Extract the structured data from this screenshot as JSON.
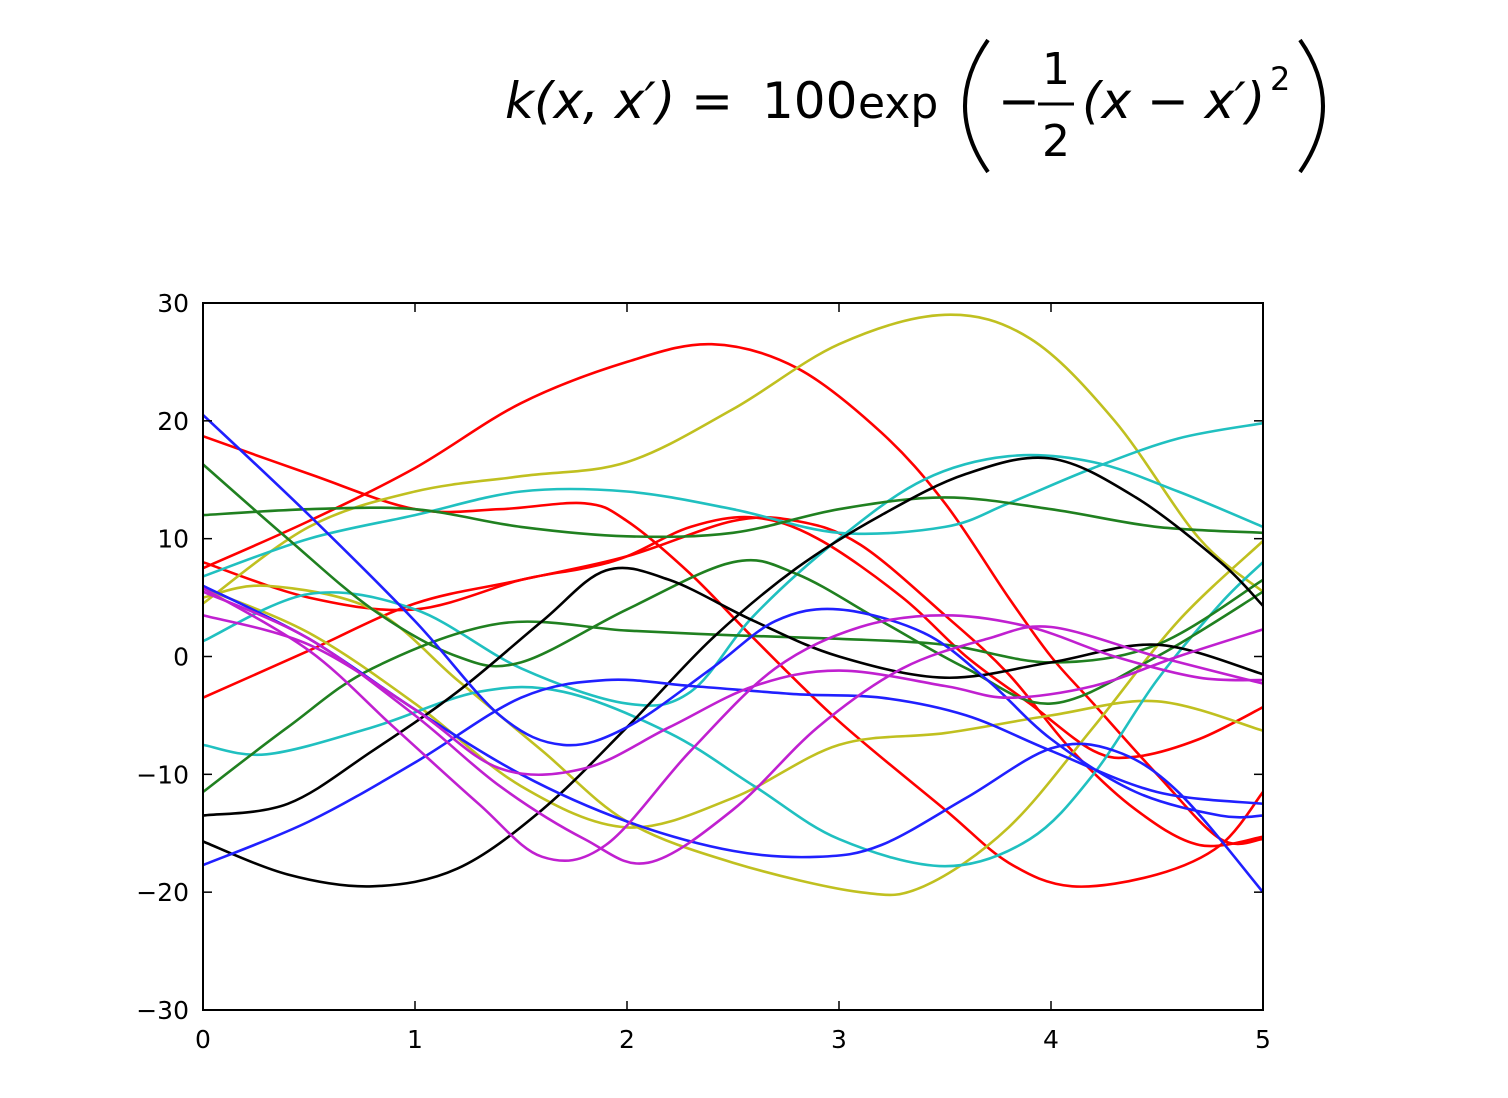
{
  "formula": {
    "lhs": "k(x, x′) =",
    "coefficient": "100",
    "coefficient_color": "#ff0000",
    "func": "exp",
    "minus": "−",
    "frac_num": "1",
    "frac_den": "2",
    "inner": "(x − x′)",
    "power": "2"
  },
  "chart_data": {
    "type": "line",
    "title": "",
    "xlabel": "",
    "ylabel": "",
    "xlim": [
      0,
      5
    ],
    "ylim": [
      -30,
      30
    ],
    "xticks": [
      0,
      1,
      2,
      3,
      4,
      5
    ],
    "yticks": [
      -30,
      -20,
      -10,
      0,
      10,
      20,
      30
    ],
    "xtick_labels": [
      "0",
      "1",
      "2",
      "3",
      "4",
      "5"
    ],
    "ytick_labels": [
      "−30",
      "−20",
      "−10",
      "0",
      "10",
      "20",
      "30"
    ],
    "grid": false,
    "legend": "none",
    "series": [
      {
        "color": "#ff0000",
        "points": [
          [
            0,
            7.5
          ],
          [
            0.5,
            11.5
          ],
          [
            1,
            16
          ],
          [
            1.5,
            21.5
          ],
          [
            2,
            25
          ],
          [
            2.4,
            26.5
          ],
          [
            2.8,
            24.5
          ],
          [
            3.2,
            19
          ],
          [
            3.5,
            13
          ],
          [
            3.8,
            5
          ],
          [
            4,
            0
          ],
          [
            4.2,
            -4
          ],
          [
            4.5,
            -10
          ],
          [
            4.8,
            -15.5
          ],
          [
            5,
            -15.5
          ]
        ]
      },
      {
        "color": "#ff0000",
        "points": [
          [
            0,
            18.7
          ],
          [
            0.5,
            15.5
          ],
          [
            1,
            12.5
          ],
          [
            1.4,
            12.5
          ],
          [
            1.8,
            13
          ],
          [
            2,
            11.5
          ],
          [
            2.3,
            7
          ],
          [
            2.6,
            1.5
          ],
          [
            3,
            -5.5
          ],
          [
            3.5,
            -13
          ],
          [
            3.8,
            -17.5
          ],
          [
            4.1,
            -19.5
          ],
          [
            4.5,
            -18.5
          ],
          [
            4.8,
            -16
          ],
          [
            5,
            -11.5
          ]
        ]
      },
      {
        "color": "#ff0000",
        "points": [
          [
            0,
            8
          ],
          [
            0.5,
            5
          ],
          [
            1,
            4
          ],
          [
            1.5,
            6.5
          ],
          [
            1.8,
            7.5
          ],
          [
            2,
            8.5
          ],
          [
            2.3,
            11
          ],
          [
            2.6,
            11.8
          ],
          [
            2.9,
            10
          ],
          [
            3.3,
            5
          ],
          [
            3.6,
            0
          ],
          [
            3.9,
            -4
          ],
          [
            4.2,
            -8
          ],
          [
            4.4,
            -8.5
          ],
          [
            4.7,
            -7
          ],
          [
            5,
            -4.3
          ]
        ]
      },
      {
        "color": "#ff0000",
        "points": [
          [
            0,
            -3.5
          ],
          [
            0.5,
            0.5
          ],
          [
            1,
            4.5
          ],
          [
            1.5,
            6.5
          ],
          [
            2,
            8.5
          ],
          [
            2.5,
            11.5
          ],
          [
            2.8,
            11.5
          ],
          [
            3.1,
            9.5
          ],
          [
            3.5,
            3.5
          ],
          [
            3.8,
            -1.5
          ],
          [
            4.1,
            -8
          ],
          [
            4.4,
            -13
          ],
          [
            4.7,
            -16
          ],
          [
            5,
            -15.3
          ]
        ]
      },
      {
        "color": "#c0c020",
        "points": [
          [
            0,
            4.5
          ],
          [
            0.5,
            11
          ],
          [
            1,
            14
          ],
          [
            1.5,
            15.3
          ],
          [
            2,
            16.5
          ],
          [
            2.5,
            21
          ],
          [
            3,
            26.5
          ],
          [
            3.5,
            29
          ],
          [
            3.9,
            27
          ],
          [
            4.3,
            20
          ],
          [
            4.7,
            10
          ],
          [
            5,
            5.5
          ]
        ]
      },
      {
        "color": "#c0c020",
        "points": [
          [
            0,
            5.8
          ],
          [
            0.5,
            2
          ],
          [
            1,
            -4
          ],
          [
            1.5,
            -11
          ],
          [
            2,
            -14.5
          ],
          [
            2.5,
            -12
          ],
          [
            3,
            -7.5
          ],
          [
            3.5,
            -6.5
          ],
          [
            4,
            -5
          ],
          [
            4.5,
            -3.8
          ],
          [
            5,
            -6.3
          ]
        ]
      },
      {
        "color": "#c0c020",
        "points": [
          [
            0,
            5
          ],
          [
            0.3,
            6
          ],
          [
            0.8,
            4
          ],
          [
            1.2,
            -2
          ],
          [
            1.6,
            -8
          ],
          [
            2,
            -14
          ],
          [
            2.5,
            -17.5
          ],
          [
            3.1,
            -20
          ],
          [
            3.4,
            -19.5
          ],
          [
            3.8,
            -14.5
          ],
          [
            4.2,
            -6
          ],
          [
            4.6,
            3
          ],
          [
            5,
            9.8
          ]
        ]
      },
      {
        "color": "#20c0c0",
        "points": [
          [
            0,
            6.8
          ],
          [
            0.5,
            10
          ],
          [
            1,
            12
          ],
          [
            1.5,
            14
          ],
          [
            2,
            14
          ],
          [
            2.5,
            12.5
          ],
          [
            3,
            10.5
          ],
          [
            3.5,
            11
          ],
          [
            3.8,
            13
          ],
          [
            4.2,
            16
          ],
          [
            4.6,
            18.5
          ],
          [
            5,
            19.8
          ]
        ]
      },
      {
        "color": "#20c0c0",
        "points": [
          [
            0,
            1.3
          ],
          [
            0.5,
            5.3
          ],
          [
            1,
            4
          ],
          [
            1.5,
            -1
          ],
          [
            2,
            -4
          ],
          [
            2.3,
            -3
          ],
          [
            2.6,
            3.5
          ],
          [
            3,
            10
          ],
          [
            3.4,
            15
          ],
          [
            3.8,
            17
          ],
          [
            4.2,
            16.5
          ],
          [
            4.6,
            14
          ],
          [
            5,
            11
          ]
        ]
      },
      {
        "color": "#20c0c0",
        "points": [
          [
            0,
            -7.5
          ],
          [
            0.3,
            -8.3
          ],
          [
            0.8,
            -6
          ],
          [
            1.3,
            -3
          ],
          [
            1.7,
            -3
          ],
          [
            2.2,
            -6.5
          ],
          [
            2.6,
            -11
          ],
          [
            3,
            -15.5
          ],
          [
            3.5,
            -17.8
          ],
          [
            3.9,
            -15.5
          ],
          [
            4.2,
            -10
          ],
          [
            4.5,
            -2
          ],
          [
            4.8,
            4.5
          ],
          [
            5,
            8
          ]
        ]
      },
      {
        "color": "#208020",
        "points": [
          [
            0,
            12
          ],
          [
            0.5,
            12.5
          ],
          [
            1,
            12.5
          ],
          [
            1.5,
            11
          ],
          [
            2,
            10.2
          ],
          [
            2.5,
            10.5
          ],
          [
            3,
            12.5
          ],
          [
            3.5,
            13.5
          ],
          [
            4,
            12.5
          ],
          [
            4.5,
            11
          ],
          [
            5,
            10.5
          ]
        ]
      },
      {
        "color": "#208020",
        "points": [
          [
            0,
            16.3
          ],
          [
            0.4,
            10
          ],
          [
            0.8,
            4
          ],
          [
            1.2,
            0
          ],
          [
            1.5,
            -0.5
          ],
          [
            2,
            4
          ],
          [
            2.5,
            8
          ],
          [
            2.8,
            7
          ],
          [
            3.2,
            3
          ],
          [
            3.6,
            -1
          ],
          [
            4,
            -4
          ],
          [
            4.5,
            0
          ],
          [
            5,
            5.5
          ]
        ]
      },
      {
        "color": "#208020",
        "points": [
          [
            0,
            -11.5
          ],
          [
            0.4,
            -6
          ],
          [
            0.8,
            -1
          ],
          [
            1.4,
            2.8
          ],
          [
            2,
            2.2
          ],
          [
            2.5,
            1.8
          ],
          [
            3,
            1.5
          ],
          [
            3.5,
            1
          ],
          [
            4,
            -0.5
          ],
          [
            4.5,
            1
          ],
          [
            5,
            6.5
          ]
        ]
      },
      {
        "color": "#000000",
        "points": [
          [
            0,
            -13.5
          ],
          [
            0.4,
            -12.5
          ],
          [
            0.8,
            -8
          ],
          [
            1.2,
            -3
          ],
          [
            1.6,
            3
          ],
          [
            1.9,
            7.3
          ],
          [
            2.2,
            6.5
          ],
          [
            2.6,
            3
          ],
          [
            3,
            0
          ],
          [
            3.5,
            -1.8
          ],
          [
            4,
            -0.5
          ],
          [
            4.5,
            1
          ],
          [
            5,
            -1.5
          ]
        ]
      },
      {
        "color": "#000000",
        "points": [
          [
            0,
            -15.7
          ],
          [
            0.4,
            -18.5
          ],
          [
            0.8,
            -19.5
          ],
          [
            1.2,
            -18
          ],
          [
            1.6,
            -13
          ],
          [
            2,
            -6
          ],
          [
            2.4,
            1.5
          ],
          [
            2.8,
            7.5
          ],
          [
            3.2,
            12
          ],
          [
            3.6,
            15.5
          ],
          [
            4,
            16.8
          ],
          [
            4.4,
            13.5
          ],
          [
            4.8,
            8
          ],
          [
            5,
            4.3
          ]
        ]
      },
      {
        "color": "#2020ff",
        "points": [
          [
            0,
            20.5
          ],
          [
            0.5,
            12
          ],
          [
            1,
            3
          ],
          [
            1.4,
            -5
          ],
          [
            1.7,
            -7.5
          ],
          [
            2,
            -6
          ],
          [
            2.4,
            -1
          ],
          [
            2.7,
            3
          ],
          [
            3,
            4
          ],
          [
            3.4,
            2
          ],
          [
            3.7,
            -2
          ],
          [
            4,
            -7
          ],
          [
            4.4,
            -11.5
          ],
          [
            4.8,
            -13.5
          ],
          [
            5,
            -13.5
          ]
        ]
      },
      {
        "color": "#2020ff",
        "points": [
          [
            0,
            -17.7
          ],
          [
            0.5,
            -14
          ],
          [
            1,
            -9
          ],
          [
            1.5,
            -3.5
          ],
          [
            1.9,
            -2
          ],
          [
            2.3,
            -2.5
          ],
          [
            2.8,
            -3.2
          ],
          [
            3.2,
            -3.5
          ],
          [
            3.6,
            -5
          ],
          [
            4,
            -8
          ],
          [
            4.5,
            -11.5
          ],
          [
            5,
            -12.5
          ]
        ]
      },
      {
        "color": "#2020ff",
        "points": [
          [
            0,
            6
          ],
          [
            0.5,
            1.5
          ],
          [
            1,
            -4.5
          ],
          [
            1.5,
            -10
          ],
          [
            2,
            -14
          ],
          [
            2.5,
            -16.5
          ],
          [
            2.9,
            -17
          ],
          [
            3.2,
            -16
          ],
          [
            3.6,
            -12
          ],
          [
            4,
            -7.8
          ],
          [
            4.3,
            -8
          ],
          [
            4.6,
            -11.5
          ],
          [
            5,
            -20
          ]
        ]
      },
      {
        "color": "#c020d0",
        "points": [
          [
            0,
            3.5
          ],
          [
            0.5,
            1
          ],
          [
            1,
            -4.5
          ],
          [
            1.4,
            -9.5
          ],
          [
            1.8,
            -9.5
          ],
          [
            2.2,
            -6
          ],
          [
            2.6,
            -2.5
          ],
          [
            3,
            -1.2
          ],
          [
            3.5,
            -2.5
          ],
          [
            3.8,
            -3.5
          ],
          [
            4.2,
            -2.5
          ],
          [
            4.6,
            0
          ],
          [
            5,
            2.3
          ]
        ]
      },
      {
        "color": "#c020d0",
        "points": [
          [
            0,
            5.8
          ],
          [
            0.5,
            0.5
          ],
          [
            0.9,
            -6
          ],
          [
            1.3,
            -12.5
          ],
          [
            1.6,
            -17
          ],
          [
            1.9,
            -16
          ],
          [
            2.3,
            -8
          ],
          [
            2.7,
            -1
          ],
          [
            3.1,
            2.5
          ],
          [
            3.5,
            3.5
          ],
          [
            3.9,
            2.5
          ],
          [
            4.3,
            0
          ],
          [
            4.7,
            -1.8
          ],
          [
            5,
            -2
          ]
        ]
      },
      {
        "color": "#c020d0",
        "points": [
          [
            0,
            5.5
          ],
          [
            0.5,
            1.5
          ],
          [
            1,
            -5
          ],
          [
            1.4,
            -11
          ],
          [
            1.8,
            -15.5
          ],
          [
            2.1,
            -17.5
          ],
          [
            2.5,
            -13
          ],
          [
            2.9,
            -6
          ],
          [
            3.3,
            -1
          ],
          [
            3.7,
            1.5
          ],
          [
            4,
            2.5
          ],
          [
            4.5,
            0
          ],
          [
            5,
            -2.3
          ]
        ]
      }
    ]
  }
}
